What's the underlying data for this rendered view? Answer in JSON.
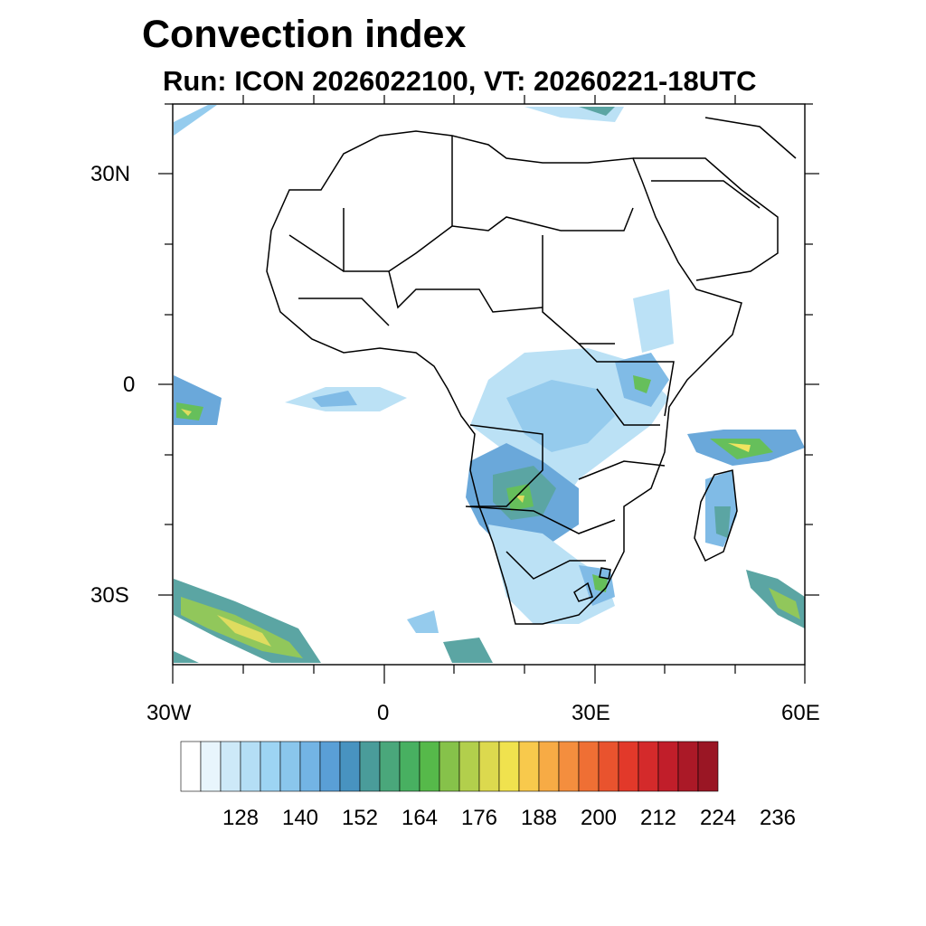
{
  "title": "Convection index",
  "subtitle": "Run: ICON 2026022100,  VT: 20260221-18UTC",
  "lat_labels": [
    "30N",
    "0",
    "30S"
  ],
  "lon_labels": [
    "30W",
    "0",
    "30E",
    "60E"
  ],
  "colorbar": {
    "colors": [
      "#ffffff",
      "#e8f5fc",
      "#cde9f8",
      "#b4def5",
      "#9dd4f3",
      "#8ac6ec",
      "#73b4e4",
      "#5a9fd6",
      "#4893c0",
      "#4a9c9a",
      "#4aa77b",
      "#48b061",
      "#56b94a",
      "#86c24a",
      "#b2cf4c",
      "#dcd94e",
      "#f0e24e",
      "#f8c94c",
      "#f7ab45",
      "#f48e3e",
      "#ef6f34",
      "#e9532e",
      "#e2392a",
      "#d42a2b",
      "#c11e2a",
      "#ab1927",
      "#9a1624"
    ],
    "tick_labels": [
      "128",
      "140",
      "152",
      "164",
      "176",
      "188",
      "200",
      "212",
      "224",
      "236"
    ]
  }
}
